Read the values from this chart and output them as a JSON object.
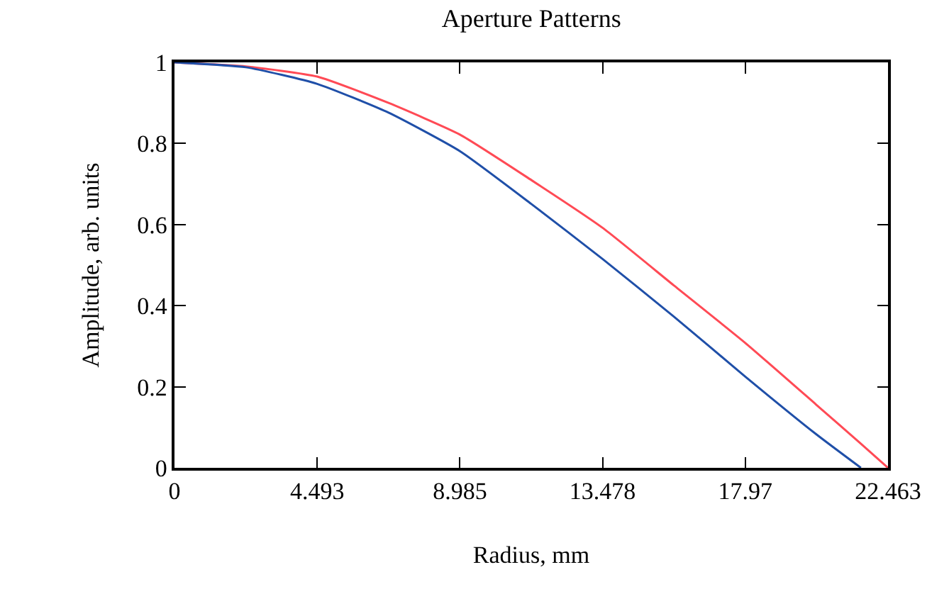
{
  "chart_data": {
    "type": "line",
    "title": "Aperture Patterns",
    "xlabel": "Radius, mm",
    "ylabel": "Amplitude, arb. units",
    "x": [
      0,
      2.246,
      4.493,
      6.739,
      8.985,
      11.23,
      13.478,
      15.72,
      17.97,
      20.2,
      21.6,
      22.463
    ],
    "series": [
      {
        "color": "#ff4a55",
        "values": [
          1,
          0.99,
          0.965,
          0.9,
          0.822,
          0.71,
          0.592,
          0.45,
          0.308,
          0.156,
          0.06,
          0
        ]
      },
      {
        "color": "#1f4fa8",
        "x": [
          0,
          2.246,
          4.493,
          6.739,
          8.985,
          11.23,
          13.478,
          15.72,
          17.97,
          20.2,
          21.61
        ],
        "values": [
          1,
          0.988,
          0.947,
          0.876,
          0.781,
          0.651,
          0.515,
          0.373,
          0.225,
          0.083,
          0
        ]
      }
    ],
    "xlim": [
      0,
      22.463
    ],
    "xticks": [
      0,
      4.493,
      8.985,
      13.478,
      17.97,
      22.463
    ],
    "ylim": [
      0,
      1
    ],
    "yticks": [
      0,
      0.2,
      0.4,
      0.6,
      0.8,
      1
    ],
    "grid": false
  }
}
